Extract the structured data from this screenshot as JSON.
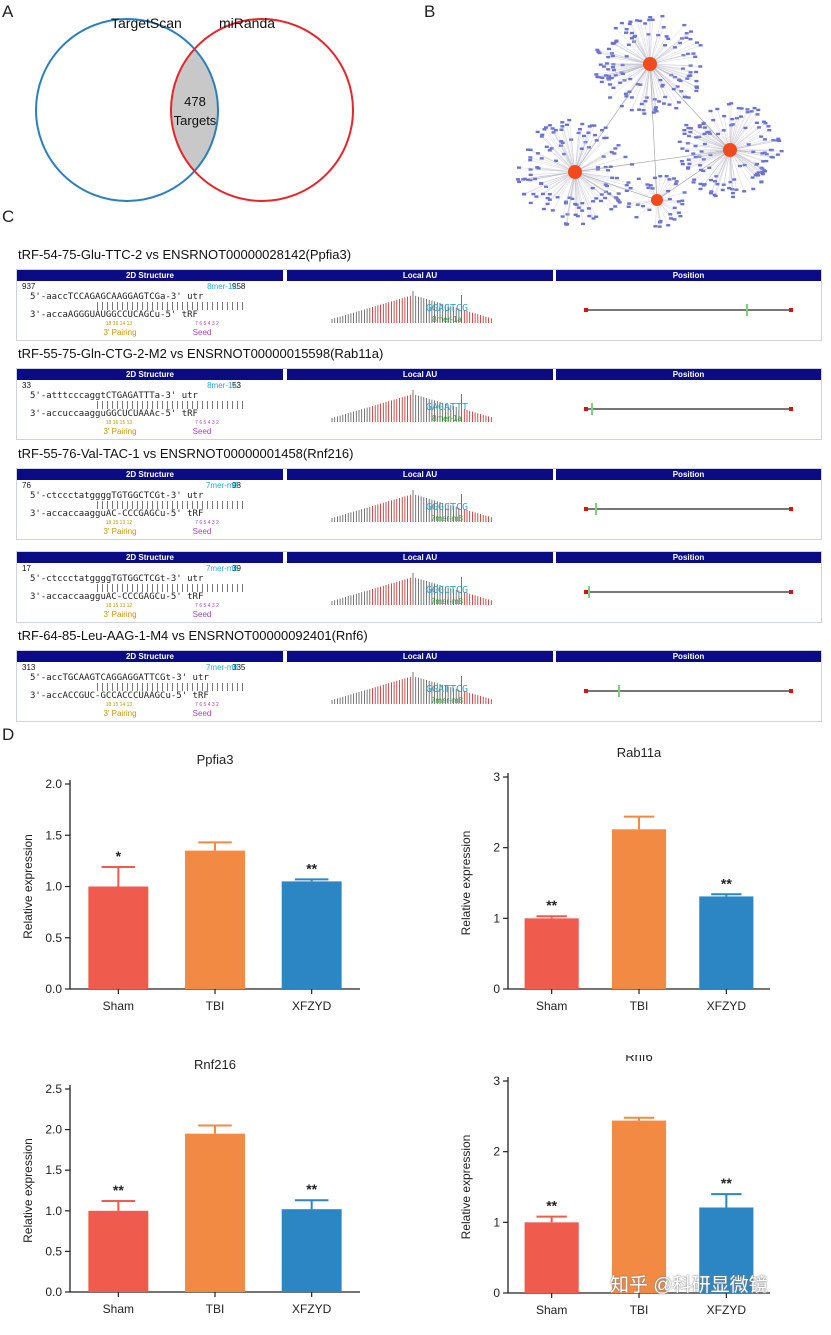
{
  "panels": {
    "A": "A",
    "B": "B",
    "C": "C",
    "D": "D"
  },
  "venn": {
    "left_label": "TargetScan",
    "right_label": "miRanda",
    "center_count": "478",
    "center_label": "Targets",
    "colors": {
      "left": "#2a7fc0",
      "right": "#e8262a",
      "overlap": "#c8c8c8"
    }
  },
  "network": {
    "hub_color": "#f24a1c",
    "node_color": "#6a72d6",
    "hubs": [
      "hub-1",
      "hub-2",
      "hub-3",
      "hub-4"
    ]
  },
  "structure_header": {
    "col1": "2D Structure",
    "col2": "Local AU",
    "col3": "Position"
  },
  "pairs": [
    {
      "title": "tRF-54-75-Glu-TTC-2 vs ENSRNOT00000028142(Ppfia3)",
      "start": "937",
      "end": "958",
      "site_type": "8mer-1a",
      "utr": "5'-aaccTCCAGAGCAAGGAGTCGa-3' utr",
      "trf": "3'-accaAGGGUAUGGCCUCAGCu-5' tRF",
      "pairing_nums": "18 16 14 13",
      "seed_nums": "7 6 5 4 3 2",
      "pairing": "3' Pairing",
      "seed": "Seed",
      "motif": "GGAGTCG"
    },
    {
      "title": "tRF-55-75-Gln-CTG-2-M2 vs ENSRNOT00000015598(Rab11a)",
      "start": "33",
      "end": "53",
      "site_type": "8mer-1a",
      "utr": "5'-atttcccaggtCTGAGATTTa-3' utr",
      "trf": "3'-accuccaagguGGCUCUAAAc-5' tRF",
      "pairing_nums": "18 16 15 13",
      "seed_nums": "7 6 5 4 3 2",
      "pairing": "3' Pairing",
      "seed": "Seed",
      "motif": "GAGATTT"
    },
    {
      "title": "tRF-55-76-Val-TAC-1 vs ENSRNOT00000001458(Rnf216)",
      "start": "76",
      "end": "98",
      "site_type": "7mer-m8",
      "utr": "5'-ctccctatggggTGTGGCTCGt-3' utr",
      "trf": "3'-accaccaagguAC-CCCGAGCu-5' tRF",
      "pairing_nums": "18 15 13 12",
      "seed_nums": "7 6 5 4 3 2",
      "pairing": "3' Pairing",
      "seed": "Seed",
      "motif": "GGGCTCG"
    },
    {
      "title": "",
      "start": "17",
      "end": "39",
      "site_type": "7mer-m8",
      "utr": "5'-ctccctatggggTGTGGCTCGt-3' utr",
      "trf": "3'-accaccaagguAC-CCCGAGCu-5' tRF",
      "pairing_nums": "18 15 13 12",
      "seed_nums": "7 6 5 4 3 2",
      "pairing": "3' Pairing",
      "seed": "Seed",
      "motif": "GGGCTCG"
    },
    {
      "title": "tRF-64-85-Leu-AAG-1-M4 vs ENSRNOT00000092401(Rnf6)",
      "start": "313",
      "end": "335",
      "site_type": "7mer-m8",
      "utr": "5'-accTGCAAGTCAGGAGGATTCGt-3' utr",
      "trf": "3'-accACCGUC-GCCACCCUAAGCu-5' tRF",
      "pairing_nums": "18 15 14 13",
      "seed_nums": "7 6 5 4 3 2",
      "pairing": "3' Pairing",
      "seed": "Seed",
      "motif": "GGATTCG"
    }
  ],
  "chart_data": [
    {
      "type": "bar",
      "title": "Ppfia3",
      "ylabel": "Relative expression",
      "categories": [
        "Sham",
        "TBI",
        "XFZYD"
      ],
      "values": [
        1.0,
        1.35,
        1.05
      ],
      "errors": [
        0.19,
        0.08,
        0.02
      ],
      "annotations": [
        "*",
        "",
        "**"
      ],
      "ylim": [
        0,
        2.0
      ],
      "yticks": [
        0.0,
        0.5,
        1.0,
        1.5,
        2.0
      ],
      "tick_labels": [
        "0.0",
        "0.5",
        "1.0",
        "1.5",
        "2.0"
      ],
      "colors": [
        "#ef5b4c",
        "#f28a43",
        "#2c86c3"
      ]
    },
    {
      "type": "bar",
      "title": "Rab11a",
      "ylabel": "Relative expression",
      "categories": [
        "Sham",
        "TBI",
        "XFZYD"
      ],
      "values": [
        1.0,
        2.26,
        1.31
      ],
      "errors": [
        0.03,
        0.18,
        0.03
      ],
      "annotations": [
        "**",
        "",
        "**"
      ],
      "ylim": [
        0,
        3
      ],
      "yticks": [
        0,
        1,
        2,
        3
      ],
      "tick_labels": [
        "0",
        "1",
        "2",
        "3"
      ],
      "colors": [
        "#ef5b4c",
        "#f28a43",
        "#2c86c3"
      ]
    },
    {
      "type": "bar",
      "title": "Rnf216",
      "ylabel": "Relative expression",
      "categories": [
        "Sham",
        "TBI",
        "XFZYD"
      ],
      "values": [
        1.0,
        1.95,
        1.02
      ],
      "errors": [
        0.12,
        0.1,
        0.11
      ],
      "annotations": [
        "**",
        "",
        "**"
      ],
      "ylim": [
        0,
        2.5
      ],
      "yticks": [
        0.0,
        0.5,
        1.0,
        1.5,
        2.0,
        2.5
      ],
      "tick_labels": [
        "0.0",
        "0.5",
        "1.0",
        "1.5",
        "2.0",
        "2.5"
      ],
      "colors": [
        "#ef5b4c",
        "#f28a43",
        "#2c86c3"
      ]
    },
    {
      "type": "bar",
      "title": "Rnf6",
      "ylabel": "Relative expression",
      "categories": [
        "Sham",
        "TBI",
        "XFZYD"
      ],
      "values": [
        1.0,
        2.44,
        1.21
      ],
      "errors": [
        0.08,
        0.04,
        0.19
      ],
      "annotations": [
        "**",
        "",
        "**"
      ],
      "ylim": [
        0,
        3
      ],
      "yticks": [
        0,
        1,
        2,
        3
      ],
      "tick_labels": [
        "0",
        "1",
        "2",
        "3"
      ],
      "colors": [
        "#ef5b4c",
        "#f28a43",
        "#2c86c3"
      ]
    }
  ],
  "watermark": "知乎 @科研显微镜"
}
